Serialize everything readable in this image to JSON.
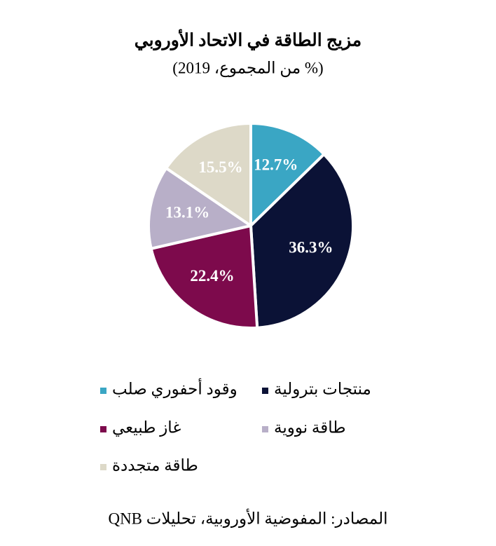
{
  "chart_data": {
    "type": "pie",
    "title": "مزيج الطاقة في الاتحاد الأوروبي",
    "subtitle": "(% من المجموع، 2019)",
    "categories": [
      "وقود أحفوري صلب",
      "منتجات بترولية",
      "غاز طبيعي",
      "طاقة نووية",
      "طاقة متجددة"
    ],
    "values": [
      12.7,
      36.3,
      22.4,
      13.1,
      15.5
    ],
    "value_labels": [
      "12.7%",
      "36.3%",
      "22.4%",
      "13.1%",
      "15.5%"
    ],
    "colors": [
      "#3aa6c4",
      "#0b1236",
      "#7d0a4c",
      "#b8afc8",
      "#ddd9c8"
    ],
    "source": "المصادر: المفوضية الأوروبية، تحليلات QNB"
  }
}
